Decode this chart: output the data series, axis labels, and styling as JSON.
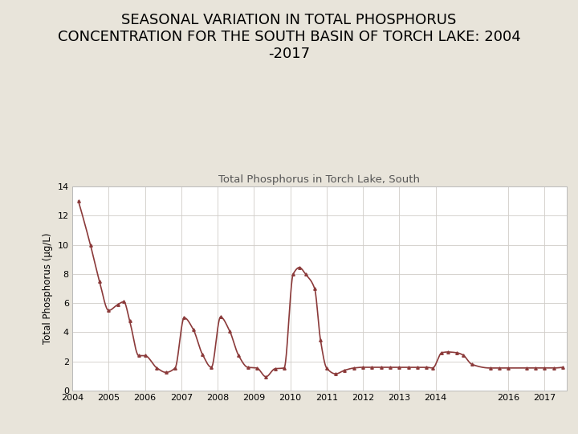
{
  "title": "SEASONAL VARIATION IN TOTAL PHOSPHORUS\nCONCENTRATION FOR THE SOUTH BASIN OF TORCH LAKE: 2004\n-2017",
  "inner_title": "Total Phosphorus in Torch Lake, South",
  "ylabel": "Total Phosphorus (µg/L)",
  "background_color": "#e8e4da",
  "plot_bg_color": "#ffffff",
  "line_color": "#8b3a3a",
  "x": [
    2004.17,
    2004.5,
    2004.75,
    2005.0,
    2005.25,
    2005.42,
    2005.58,
    2005.83,
    2006.0,
    2006.33,
    2006.58,
    2006.83,
    2007.08,
    2007.33,
    2007.58,
    2007.83,
    2008.08,
    2008.33,
    2008.58,
    2008.83,
    2009.08,
    2009.33,
    2009.58,
    2009.83,
    2010.08,
    2010.25,
    2010.42,
    2010.67,
    2010.83,
    2011.0,
    2011.25,
    2011.5,
    2011.75,
    2012.0,
    2012.25,
    2012.5,
    2012.75,
    2013.0,
    2013.25,
    2013.5,
    2013.75,
    2013.92,
    2014.17,
    2014.33,
    2014.58,
    2014.75,
    2015.0,
    2015.5,
    2015.75,
    2016.0,
    2016.5,
    2016.75,
    2017.0,
    2017.25,
    2017.5
  ],
  "y": [
    13.0,
    10.0,
    7.5,
    5.5,
    5.9,
    6.1,
    4.8,
    2.4,
    2.4,
    1.55,
    1.25,
    1.55,
    5.0,
    4.2,
    2.5,
    1.6,
    5.05,
    4.1,
    2.4,
    1.6,
    1.55,
    0.95,
    1.5,
    1.55,
    8.0,
    8.45,
    8.0,
    7.0,
    3.5,
    1.55,
    1.15,
    1.4,
    1.55,
    1.6,
    1.6,
    1.6,
    1.6,
    1.6,
    1.6,
    1.6,
    1.6,
    1.55,
    2.6,
    2.65,
    2.6,
    2.45,
    1.8,
    1.55,
    1.55,
    1.55,
    1.55,
    1.55,
    1.55,
    1.55,
    1.6
  ],
  "xlim": [
    2004.0,
    2017.6
  ],
  "ylim": [
    0,
    14
  ],
  "xticks": [
    2004,
    2005,
    2006,
    2007,
    2008,
    2009,
    2010,
    2011,
    2012,
    2013,
    2014,
    2016,
    2017
  ],
  "yticks": [
    0,
    2,
    4,
    6,
    8,
    10,
    12,
    14
  ],
  "title_fontsize": 13,
  "inner_title_fontsize": 9.5,
  "axis_fontsize": 8.5,
  "tick_fontsize": 8
}
